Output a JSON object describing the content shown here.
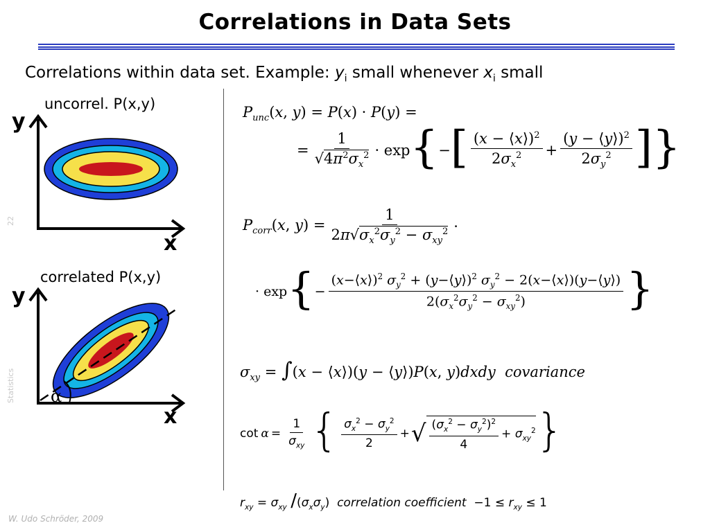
{
  "title": "Correlations in Data Sets",
  "subtitle": {
    "text1": "Correlations within data set.  Example: ",
    "y": "y",
    "i1": "i",
    "text2": " small whenever ",
    "x": "x",
    "i2": "i",
    "text3": " small"
  },
  "plot_uncorrelated": {
    "caption": "uncorrel. P(x,y)",
    "y_label": "y",
    "x_label": "x"
  },
  "plot_correlated": {
    "caption": "correlated P(x,y)",
    "y_label": "y",
    "x_label": "x",
    "angle_label": "α"
  },
  "side_labels": {
    "page_number": "22",
    "section": "Statistics"
  },
  "footer": "W. Udo Schröder, 2009",
  "equations": {
    "covariance_word": "covariance",
    "correlation_word": "correlation coefficient",
    "cot_word": "cot"
  },
  "colors": {
    "title_rule": "#2a3bbf",
    "ring_outer": "#1f3fd8",
    "ring_cyan": "#14b4e6",
    "ring_yellow": "#f6e04a",
    "core_red": "#c8161d"
  }
}
